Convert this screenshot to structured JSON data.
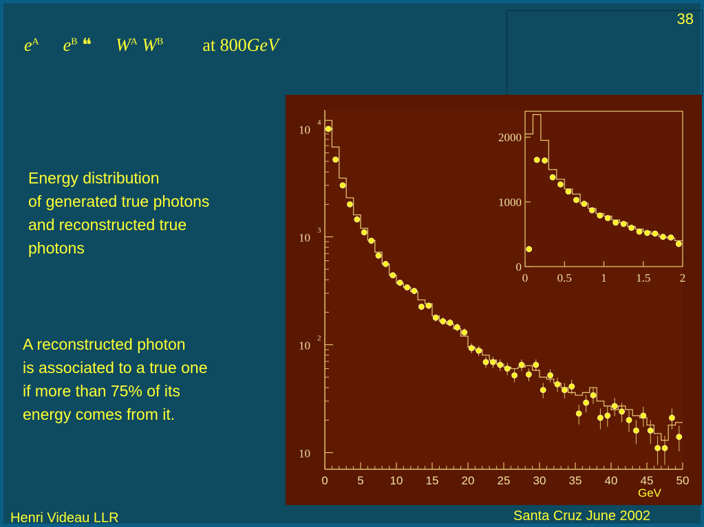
{
  "slide": {
    "page_number": "38",
    "formula": {
      "e1": "e",
      "s1": "A",
      "e2": "e",
      "s2": "B",
      "arrow": "❝",
      "w1": "W",
      "s3": "A",
      "w2": "W",
      "s4": "B",
      "energy_text": "at 800",
      "energy_unit": "GeV"
    },
    "description_lines": [
      "Energy distribution",
      "of generated true photons",
      "and reconstructed true",
      "photons"
    ],
    "association_lines": [
      "A reconstructed photon",
      "is associated to a true one",
      "if more than 75% of its",
      "energy comes from it."
    ],
    "footer_left": "Henri Videau  LLR",
    "footer_right": "Santa Cruz June 2002"
  },
  "colors": {
    "background": "#0e4a60",
    "text": "#ffff33",
    "plot_background": "#5a1702",
    "plot_frame": "#e0c070",
    "points": "#ffee22"
  },
  "chart_data": [
    {
      "type": "scatter",
      "title": "",
      "xlabel": "GeV",
      "ylabel": "",
      "xlim": [
        0,
        50
      ],
      "ylim": [
        7,
        15000
      ],
      "log_y": true,
      "x_ticks": [
        0,
        5,
        10,
        15,
        20,
        25,
        30,
        35,
        40,
        45,
        50
      ],
      "y_ticks": [
        {
          "value": 10000,
          "base": "10",
          "exp": "4"
        },
        {
          "value": 1000,
          "base": "10",
          "exp": "3"
        },
        {
          "value": 100,
          "base": "10",
          "exp": "2"
        },
        {
          "value": 10,
          "base": "10",
          "exp": ""
        }
      ],
      "series": [
        {
          "name": "generated (histogram)",
          "x": [
            0.5,
            1.5,
            2.5,
            3.5,
            4.5,
            5.5,
            6.5,
            7.5,
            8.5,
            9.5,
            10.5,
            11.5,
            12.5,
            13.5,
            14.5,
            15.5,
            16.5,
            17.5,
            18.5,
            19.5,
            20.5,
            21.5,
            22.5,
            23.5,
            24.5,
            25.5,
            26.5,
            27.5,
            28.5,
            29.5,
            30.5,
            31.5,
            32.5,
            33.5,
            34.5,
            35.5,
            36.5,
            37.5,
            38.5,
            39.5,
            40.5,
            41.5,
            42.5,
            43.5,
            44.5,
            45.5,
            46.5,
            47.5,
            48.5,
            49.5
          ],
          "values": [
            12000,
            6800,
            3500,
            2300,
            1600,
            1200,
            930,
            720,
            560,
            440,
            370,
            340,
            310,
            260,
            240,
            185,
            165,
            155,
            140,
            120,
            95,
            90,
            80,
            72,
            66,
            62,
            60,
            62,
            64,
            58,
            50,
            48,
            44,
            40,
            36,
            34,
            36,
            40,
            30,
            27,
            25,
            27,
            25,
            22,
            21,
            18,
            15,
            13,
            18,
            19
          ]
        },
        {
          "name": "reconstructed (points)",
          "x": [
            0.5,
            1.5,
            2.5,
            3.5,
            4.5,
            5.5,
            6.5,
            7.5,
            8.5,
            9.5,
            10.5,
            11.5,
            12.5,
            13.5,
            14.5,
            15.5,
            16.5,
            17.5,
            18.5,
            19.5,
            20.5,
            21.5,
            22.5,
            23.5,
            24.5,
            25.5,
            26.5,
            27.5,
            28.5,
            29.5,
            30.5,
            31.5,
            32.5,
            33.5,
            34.5,
            35.5,
            36.5,
            37.5,
            38.5,
            39.5,
            40.5,
            41.5,
            42.5,
            43.5,
            44.5,
            45.5,
            46.5,
            47.5,
            48.5,
            49.5
          ],
          "values": [
            10000,
            5200,
            3000,
            2000,
            1450,
            1100,
            920,
            670,
            560,
            440,
            375,
            340,
            315,
            225,
            230,
            178,
            165,
            160,
            145,
            130,
            93,
            88,
            69,
            69,
            65,
            60,
            52,
            65,
            53,
            65,
            38,
            52,
            43,
            38,
            41,
            23,
            29,
            34,
            21,
            22,
            27,
            24,
            20,
            16,
            22,
            16,
            11,
            11,
            21,
            14
          ]
        }
      ]
    },
    {
      "type": "scatter",
      "title": "",
      "xlim": [
        0,
        2
      ],
      "ylim": [
        0,
        2400
      ],
      "x_ticks": [
        "0",
        "0.5",
        "1",
        "1.5",
        "2"
      ],
      "y_ticks": [
        "0",
        "1000",
        "2000"
      ],
      "series": [
        {
          "name": "generated (histogram)",
          "x": [
            0.05,
            0.15,
            0.25,
            0.35,
            0.45,
            0.55,
            0.65,
            0.75,
            0.85,
            0.95,
            1.05,
            1.15,
            1.25,
            1.35,
            1.45,
            1.55,
            1.65,
            1.75,
            1.85,
            1.95
          ],
          "values": [
            2050,
            2350,
            1950,
            1500,
            1350,
            1200,
            1120,
            980,
            900,
            820,
            780,
            720,
            680,
            620,
            580,
            540,
            500,
            460,
            440,
            400
          ]
        },
        {
          "name": "reconstructed (points)",
          "x": [
            0.05,
            0.15,
            0.25,
            0.35,
            0.45,
            0.55,
            0.65,
            0.75,
            0.85,
            0.95,
            1.05,
            1.15,
            1.25,
            1.35,
            1.45,
            1.55,
            1.65,
            1.75,
            1.85,
            1.95
          ],
          "values": [
            270,
            1650,
            1640,
            1380,
            1270,
            1160,
            1030,
            970,
            870,
            790,
            750,
            680,
            660,
            600,
            540,
            520,
            510,
            460,
            450,
            350
          ]
        }
      ]
    }
  ]
}
